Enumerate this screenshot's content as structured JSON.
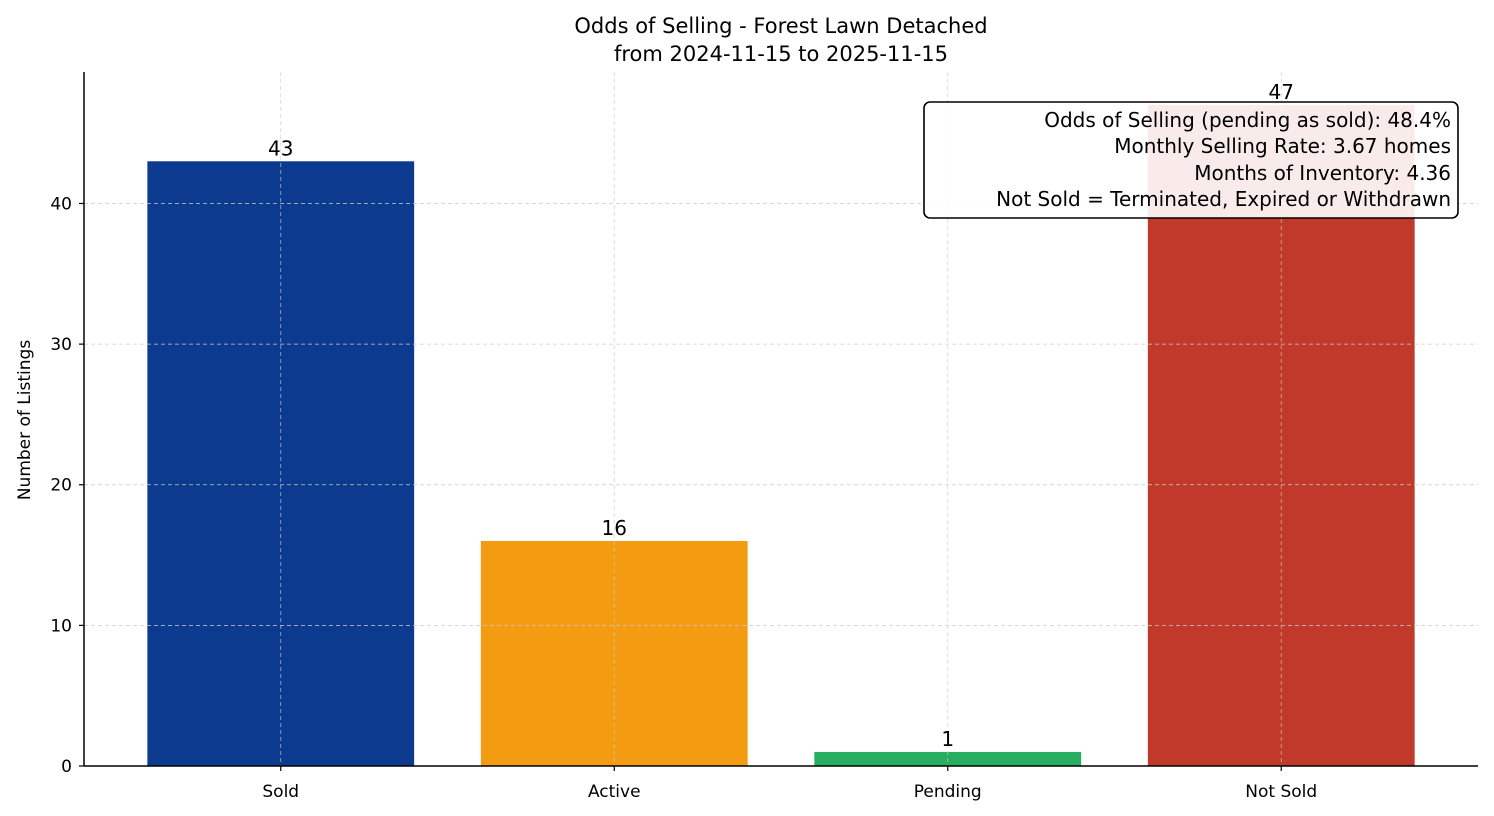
{
  "chart_data": {
    "type": "bar",
    "title": "Odds of Selling - Forest Lawn Detached",
    "subtitle": "from 2024-11-15 to 2025-11-15",
    "xlabel": "",
    "ylabel": "Number of Listings",
    "categories": [
      "Sold",
      "Active",
      "Pending",
      "Not Sold"
    ],
    "values": [
      43,
      16,
      1,
      47
    ],
    "colors": [
      "#0b3a8e",
      "#f39c12",
      "#27ae60",
      "#c0392b"
    ],
    "ylim": [
      0,
      49.35
    ],
    "yticks": [
      0,
      10,
      20,
      30,
      40
    ],
    "grid": true,
    "annotation": [
      "Odds of Selling (pending as sold): 48.4%",
      "Monthly Selling Rate: 3.67 homes",
      "Months of Inventory: 4.36",
      "Not Sold = Terminated, Expired or Withdrawn"
    ]
  }
}
